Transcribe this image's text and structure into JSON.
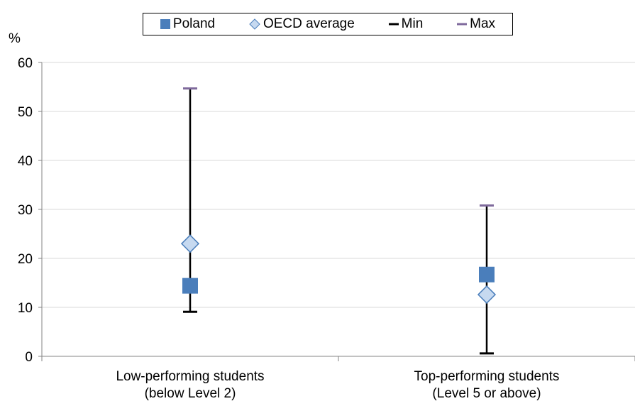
{
  "chart_data": {
    "type": "scatter",
    "unit_label": "%",
    "categories": [
      [
        "Low-performing students",
        "(below Level 2)"
      ],
      [
        "Top-performing students",
        "(Level 5 or above)"
      ]
    ],
    "series": [
      {
        "name": "Poland",
        "values": [
          14.4,
          16.7
        ],
        "marker": "square",
        "color": "#4a7ebb"
      },
      {
        "name": "OECD average",
        "values": [
          23.0,
          12.6
        ],
        "marker": "diamond",
        "color": "#c6d9f0",
        "stroke": "#4a7ebb"
      },
      {
        "name": "Min",
        "values": [
          9.1,
          0.6
        ],
        "marker": "dash",
        "color": "#000000"
      },
      {
        "name": "Max",
        "values": [
          54.7,
          30.8
        ],
        "marker": "dash",
        "color": "#7f6a9c"
      }
    ],
    "ylim": [
      0,
      60
    ],
    "yticks": [
      0,
      10,
      20,
      30,
      40,
      50,
      60
    ],
    "grid": true,
    "legend_position": "top"
  }
}
